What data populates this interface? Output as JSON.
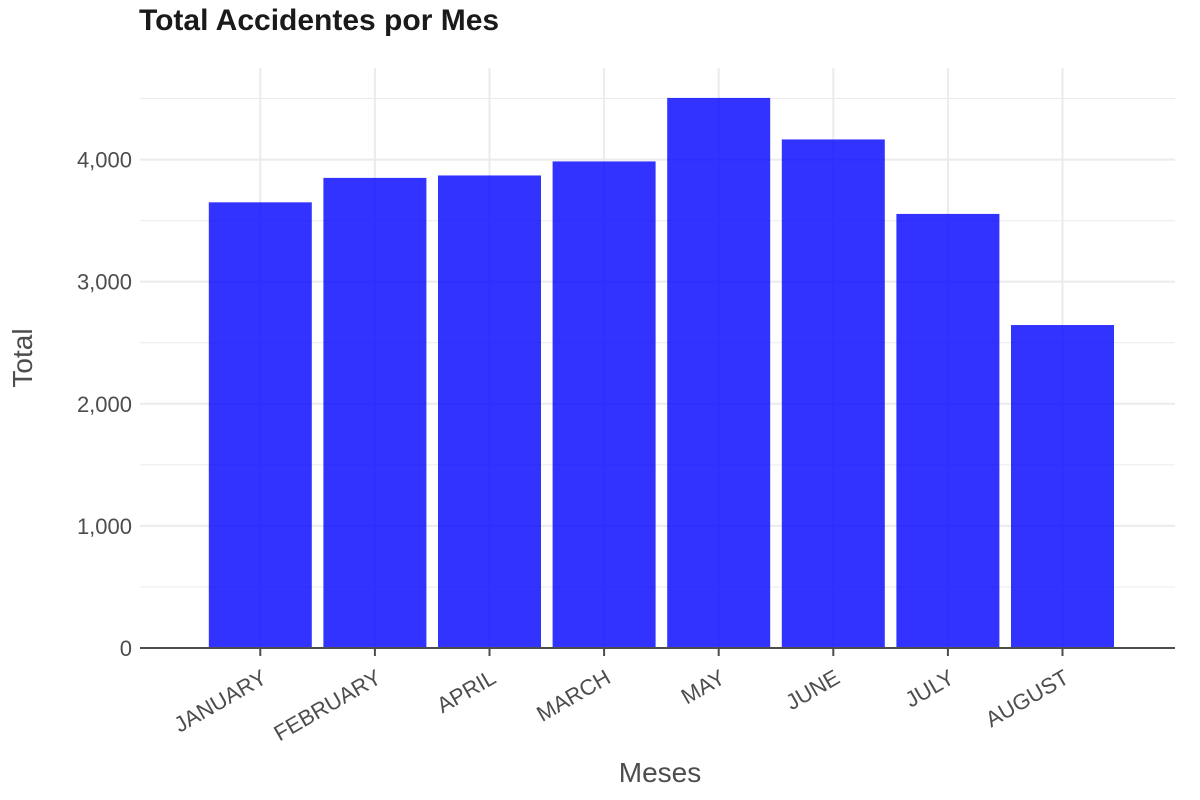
{
  "chart_data": {
    "type": "bar",
    "title": "Total Accidentes por Mes",
    "xlabel": "Meses",
    "ylabel": "Total",
    "categories": [
      "JANUARY",
      "FEBRUARY",
      "APRIL",
      "MARCH",
      "MAY",
      "JUNE",
      "JULY",
      "AUGUST"
    ],
    "values": [
      3650,
      3850,
      3870,
      3985,
      4505,
      4165,
      3555,
      2645
    ],
    "ylim": [
      0,
      4750
    ],
    "y_ticks": [
      0,
      1000,
      2000,
      3000,
      4000
    ],
    "y_tick_labels": [
      "0",
      "1,000",
      "2,000",
      "3,000",
      "4,000"
    ],
    "grid": true,
    "legend": "none",
    "bar_color": "#0000ff",
    "grid_color": "#ebebeb",
    "axis_color": "#4d4d4d"
  }
}
